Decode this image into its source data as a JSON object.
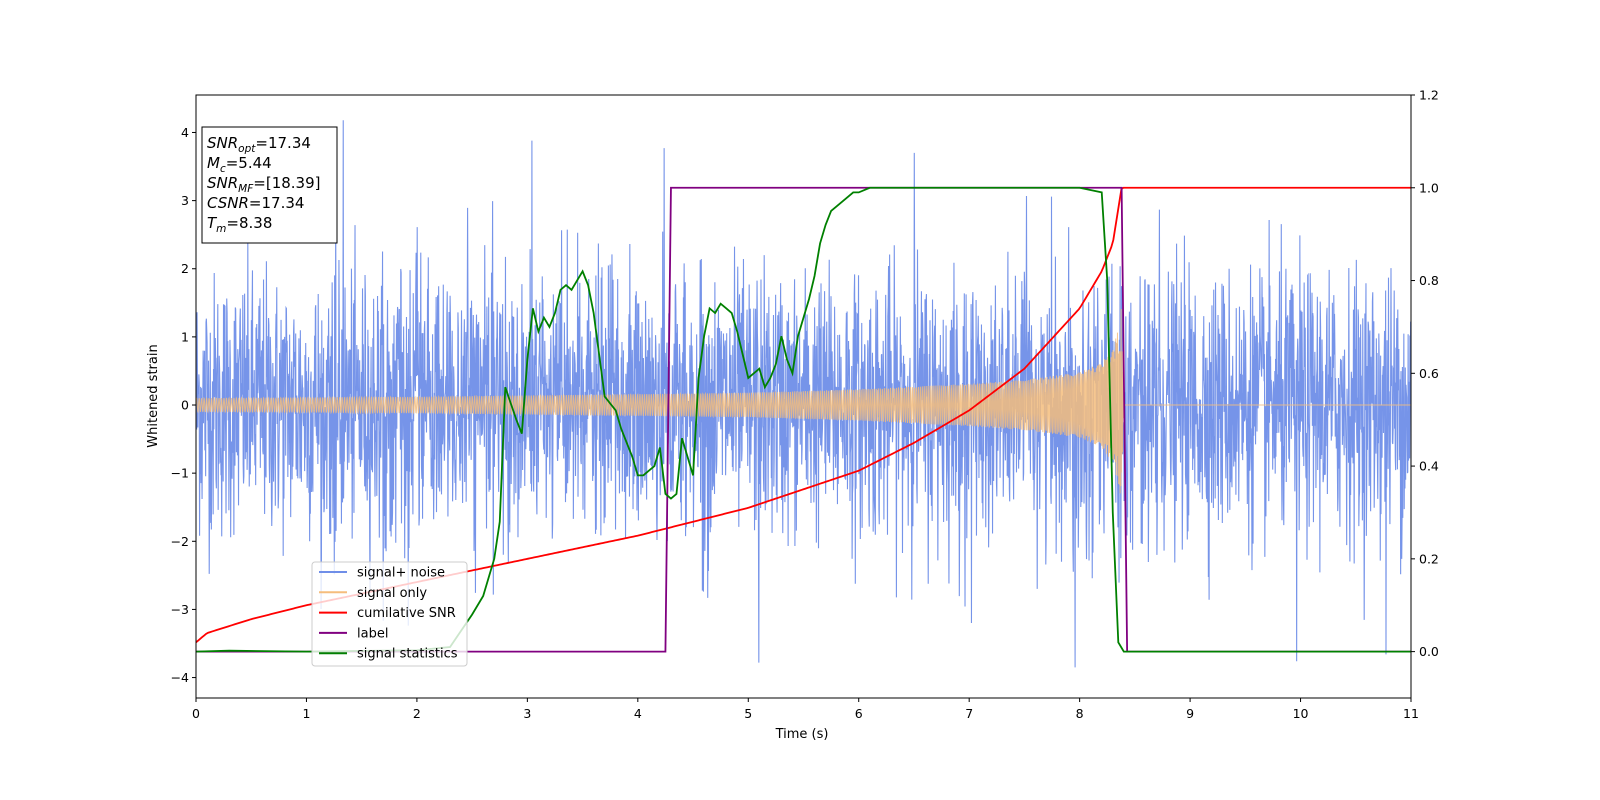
{
  "chart_data": {
    "type": "line",
    "xlabel": "Time (s)",
    "ylabel_left": "Whitened strain",
    "ylabel_right": "",
    "xlim": [
      0,
      11
    ],
    "ylim_left": [
      -4.3,
      4.55
    ],
    "ylim_right": [
      -0.1,
      1.2
    ],
    "x_ticks": [
      0,
      1,
      2,
      3,
      4,
      5,
      6,
      7,
      8,
      9,
      10,
      11
    ],
    "x_tick_labels": [
      "0",
      "1",
      "2",
      "3",
      "4",
      "5",
      "6",
      "7",
      "8",
      "9",
      "10",
      "11"
    ],
    "y_left_ticks": [
      -4,
      -3,
      -2,
      -1,
      0,
      1,
      2,
      3,
      4
    ],
    "y_left_tick_labels": [
      "−4",
      "−3",
      "−2",
      "−1",
      "0",
      "1",
      "2",
      "3",
      "4"
    ],
    "y_right_ticks": [
      0,
      0.2,
      0.4,
      0.6,
      0.8,
      1.0,
      1.2
    ],
    "y_right_tick_labels": [
      "0.0",
      "0.2",
      "0.4",
      "0.6",
      "0.8",
      "1.0",
      "1.2"
    ],
    "grid": false,
    "legend_position": "lower-left",
    "annotation": {
      "lines": [
        {
          "base": "SNR",
          "sub": "opt",
          "rest": "=17.34"
        },
        {
          "base": "M",
          "sub": "c",
          "rest": "=5.44"
        },
        {
          "base": "SNR",
          "sub": "MF",
          "rest": "=[18.39]"
        },
        {
          "base": "CSNR",
          "sub": "",
          "rest": "=17.34"
        },
        {
          "base": "T",
          "sub": "m",
          "rest": "=8.38"
        }
      ]
    },
    "series": [
      {
        "name": "signal+ noise",
        "color": "#6f8ee8",
        "axis": "left",
        "kind": "noise",
        "x_range": [
          0,
          11
        ],
        "typical_amplitude": 2.2,
        "peak_values": [
          4.18,
          3.88,
          3.77,
          3.7,
          -3.78,
          -3.85,
          -3.76,
          -3.66
        ]
      },
      {
        "name": "signal only",
        "color": "#f5bd7d",
        "axis": "left",
        "kind": "chirp",
        "x": [
          0,
          1,
          2,
          3,
          4,
          5,
          6,
          7,
          7.5,
          8,
          8.2,
          8.3,
          8.36,
          8.38,
          8.4,
          11
        ],
        "envelope": [
          0.1,
          0.11,
          0.12,
          0.14,
          0.16,
          0.18,
          0.23,
          0.31,
          0.37,
          0.48,
          0.62,
          0.85,
          1.2,
          1.5,
          0,
          0
        ]
      },
      {
        "name": "cumilative SNR",
        "color": "#ff0000",
        "axis": "right",
        "x": [
          0,
          0.1,
          0.5,
          1,
          2,
          3,
          4,
          4.5,
          5,
          5.5,
          6,
          6.5,
          7,
          7.5,
          8,
          8.2,
          8.3,
          8.38,
          11
        ],
        "y": [
          0.02,
          0.04,
          0.07,
          0.1,
          0.15,
          0.2,
          0.25,
          0.28,
          0.31,
          0.35,
          0.39,
          0.45,
          0.52,
          0.61,
          0.74,
          0.82,
          0.88,
          1.0,
          1.0
        ]
      },
      {
        "name": "label",
        "color": "#800080",
        "axis": "right",
        "x": [
          0,
          4.25,
          4.3,
          8.38,
          8.43,
          11
        ],
        "y": [
          0,
          0,
          1,
          1,
          0,
          0
        ]
      },
      {
        "name": "signal statistics",
        "color": "#008000",
        "axis": "right",
        "x": [
          0,
          0.3,
          1,
          2,
          2.3,
          2.5,
          2.6,
          2.7,
          2.75,
          2.8,
          2.9,
          2.95,
          3,
          3.05,
          3.1,
          3.15,
          3.2,
          3.25,
          3.3,
          3.35,
          3.4,
          3.45,
          3.5,
          3.55,
          3.6,
          3.7,
          3.8,
          3.85,
          3.9,
          3.95,
          4,
          4.05,
          4.1,
          4.15,
          4.2,
          4.25,
          4.3,
          4.35,
          4.4,
          4.45,
          4.5,
          4.55,
          4.6,
          4.65,
          4.7,
          4.75,
          4.8,
          4.85,
          4.9,
          4.95,
          5,
          5.05,
          5.1,
          5.15,
          5.2,
          5.25,
          5.3,
          5.35,
          5.4,
          5.45,
          5.5,
          5.55,
          5.6,
          5.65,
          5.7,
          5.75,
          5.8,
          5.85,
          5.9,
          5.95,
          6,
          6.1,
          6.3,
          6.5,
          6.7,
          7,
          7.3,
          7.5,
          8,
          8.2,
          8.25,
          8.3,
          8.35,
          8.4,
          8.45,
          11
        ],
        "y": [
          0,
          0.002,
          0,
          0.003,
          0.01,
          0.08,
          0.12,
          0.2,
          0.28,
          0.57,
          0.5,
          0.47,
          0.63,
          0.74,
          0.69,
          0.72,
          0.7,
          0.73,
          0.78,
          0.79,
          0.78,
          0.8,
          0.82,
          0.79,
          0.73,
          0.55,
          0.52,
          0.48,
          0.45,
          0.42,
          0.38,
          0.38,
          0.39,
          0.4,
          0.44,
          0.34,
          0.33,
          0.34,
          0.46,
          0.42,
          0.38,
          0.59,
          0.68,
          0.74,
          0.73,
          0.75,
          0.74,
          0.73,
          0.69,
          0.64,
          0.59,
          0.6,
          0.61,
          0.57,
          0.59,
          0.62,
          0.68,
          0.63,
          0.6,
          0.68,
          0.72,
          0.76,
          0.81,
          0.88,
          0.92,
          0.95,
          0.96,
          0.97,
          0.98,
          0.99,
          0.99,
          1.0,
          1.0,
          1.0,
          1.0,
          1.0,
          1.0,
          1.0,
          1.0,
          0.99,
          0.8,
          0.3,
          0.02,
          0,
          0,
          0
        ]
      }
    ]
  }
}
